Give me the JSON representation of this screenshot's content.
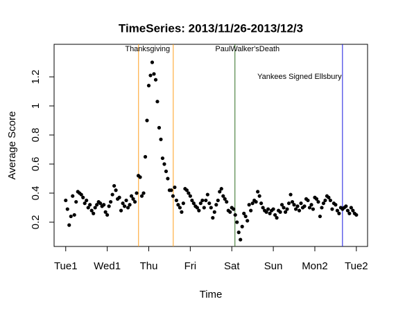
{
  "chart_data": {
    "type": "scatter",
    "title": "TimeSeries: 2013/11/26-2013/12/3",
    "xlabel": "Time",
    "ylabel": "Average Score",
    "color": "#000000",
    "xlim": [
      -0.28,
      7.27
    ],
    "ylim": [
      0.033,
      1.424
    ],
    "xticks": [
      {
        "value": 0,
        "label": "Tue1"
      },
      {
        "value": 1,
        "label": "Wed1"
      },
      {
        "value": 2,
        "label": "Thu"
      },
      {
        "value": 3,
        "label": "Fri"
      },
      {
        "value": 4,
        "label": "Sat"
      },
      {
        "value": 5,
        "label": "Sun"
      },
      {
        "value": 6,
        "label": "Mon2"
      },
      {
        "value": 7,
        "label": "Tue2"
      }
    ],
    "yticks": [
      0.2,
      0.4,
      0.6,
      0.8,
      1.0,
      1.2
    ],
    "events": [
      {
        "label": "Thanksgiving",
        "x": [
          1.754,
          2.59
        ],
        "color": "#ff9f1c"
      },
      {
        "label": "PaulWalker'sDeath",
        "x": [
          4.076
        ],
        "color": "#2e6b1f"
      },
      {
        "label": "Yankees Signed Ellsbury",
        "x": [
          6.666
        ],
        "color": "#1515e0"
      }
    ],
    "x": [
      0,
      0.042,
      0.083,
      0.125,
      0.167,
      0.208,
      0.25,
      0.292,
      0.333,
      0.375,
      0.417,
      0.458,
      0.5,
      0.542,
      0.583,
      0.625,
      0.667,
      0.708,
      0.75,
      0.792,
      0.833,
      0.875,
      0.917,
      0.958,
      1,
      1.042,
      1.083,
      1.125,
      1.167,
      1.208,
      1.25,
      1.292,
      1.333,
      1.375,
      1.417,
      1.458,
      1.5,
      1.542,
      1.583,
      1.625,
      1.667,
      1.708,
      1.75,
      1.792,
      1.833,
      1.875,
      1.917,
      1.958,
      2,
      2.042,
      2.083,
      2.125,
      2.167,
      2.208,
      2.25,
      2.292,
      2.333,
      2.375,
      2.417,
      2.458,
      2.5,
      2.542,
      2.583,
      2.625,
      2.667,
      2.708,
      2.75,
      2.792,
      2.833,
      2.875,
      2.917,
      2.958,
      3,
      3.042,
      3.083,
      3.125,
      3.167,
      3.208,
      3.25,
      3.292,
      3.333,
      3.375,
      3.417,
      3.458,
      3.5,
      3.542,
      3.583,
      3.625,
      3.667,
      3.708,
      3.75,
      3.792,
      3.833,
      3.875,
      3.917,
      3.958,
      4,
      4.042,
      4.083,
      4.125,
      4.167,
      4.208,
      4.25,
      4.292,
      4.333,
      4.375,
      4.417,
      4.458,
      4.5,
      4.542,
      4.583,
      4.625,
      4.667,
      4.708,
      4.75,
      4.792,
      4.833,
      4.875,
      4.917,
      4.958,
      5,
      5.042,
      5.083,
      5.125,
      5.167,
      5.208,
      5.25,
      5.292,
      5.333,
      5.375,
      5.417,
      5.458,
      5.5,
      5.542,
      5.583,
      5.625,
      5.667,
      5.708,
      5.75,
      5.792,
      5.833,
      5.875,
      5.917,
      5.958,
      6,
      6.042,
      6.083,
      6.125,
      6.167,
      6.208,
      6.25,
      6.292,
      6.333,
      6.375,
      6.417,
      6.458,
      6.5,
      6.542,
      6.583,
      6.625,
      6.667,
      6.708,
      6.75,
      6.792,
      6.833,
      6.875,
      6.917,
      6.958,
      7
    ],
    "values": [
      0.35,
      0.29,
      0.18,
      0.24,
      0.38,
      0.25,
      0.34,
      0.41,
      0.4,
      0.39,
      0.37,
      0.33,
      0.35,
      0.3,
      0.32,
      0.28,
      0.26,
      0.3,
      0.32,
      0.34,
      0.33,
      0.31,
      0.32,
      0.27,
      0.25,
      0.31,
      0.34,
      0.39,
      0.45,
      0.42,
      0.36,
      0.37,
      0.28,
      0.33,
      0.31,
      0.35,
      0.3,
      0.32,
      0.38,
      0.36,
      0.34,
      0.4,
      0.52,
      0.51,
      0.38,
      0.4,
      0.65,
      0.9,
      1.14,
      1.21,
      1.3,
      1.22,
      1.18,
      1.03,
      0.85,
      0.77,
      0.64,
      0.6,
      0.55,
      0.5,
      0.42,
      0.42,
      0.38,
      0.44,
      0.35,
      0.32,
      0.3,
      0.27,
      0.33,
      0.43,
      0.42,
      0.4,
      0.38,
      0.35,
      0.33,
      0.31,
      0.3,
      0.28,
      0.33,
      0.35,
      0.3,
      0.35,
      0.39,
      0.33,
      0.3,
      0.23,
      0.27,
      0.32,
      0.35,
      0.41,
      0.43,
      0.38,
      0.36,
      0.34,
      0.28,
      0.27,
      0.3,
      0.29,
      0.25,
      0.2,
      0.13,
      0.08,
      0.17,
      0.26,
      0.24,
      0.21,
      0.32,
      0.28,
      0.33,
      0.35,
      0.34,
      0.41,
      0.38,
      0.33,
      0.3,
      0.28,
      0.27,
      0.29,
      0.26,
      0.28,
      0.29,
      0.25,
      0.23,
      0.28,
      0.27,
      0.32,
      0.3,
      0.27,
      0.29,
      0.33,
      0.39,
      0.34,
      0.32,
      0.29,
      0.31,
      0.28,
      0.33,
      0.3,
      0.31,
      0.36,
      0.35,
      0.3,
      0.32,
      0.29,
      0.37,
      0.36,
      0.34,
      0.24,
      0.3,
      0.33,
      0.35,
      0.38,
      0.37,
      0.35,
      0.29,
      0.33,
      0.32,
      0.28,
      0.26,
      0.3,
      0.29,
      0.3,
      0.31,
      0.28,
      0.26,
      0.3,
      0.28,
      0.26,
      0.25
    ]
  }
}
